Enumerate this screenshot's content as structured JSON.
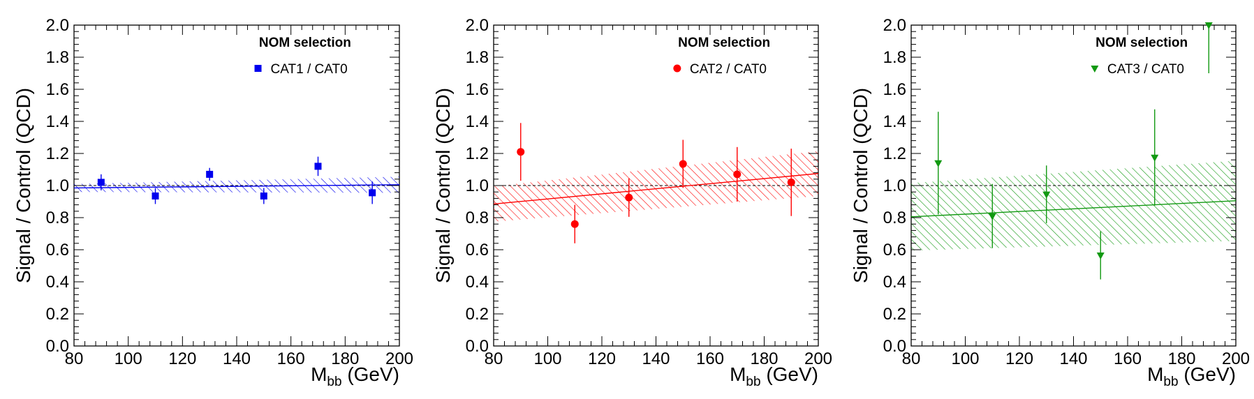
{
  "chart_data": [
    {
      "type": "scatter",
      "xlabel": "M",
      "xlabel_sub": "bb",
      "xlabel_unit": "(GeV)",
      "ylabel": "Signal / Control (QCD)",
      "xlim": [
        80,
        200
      ],
      "ylim": [
        0,
        2
      ],
      "x_ticks": [
        "80",
        "100",
        "120",
        "140",
        "160",
        "180",
        "200"
      ],
      "y_ticks": [
        "0.0",
        "0.2",
        "0.4",
        "0.6",
        "0.8",
        "1.0",
        "1.2",
        "1.4",
        "1.6",
        "1.8",
        "2.0"
      ],
      "reference_line": 1.0,
      "legend": {
        "title": "NOM selection",
        "placement": "top-right"
      },
      "series": [
        {
          "name": "CAT1 / CAT0",
          "marker": "square",
          "color": "#0000ee",
          "x": [
            90,
            110,
            130,
            150,
            170,
            190
          ],
          "y": [
            1.02,
            0.935,
            1.07,
            0.935,
            1.12,
            0.955
          ],
          "yerr": [
            0.05,
            0.05,
            0.04,
            0.05,
            0.06,
            0.07
          ]
        }
      ],
      "fit": {
        "x": [
          80,
          200
        ],
        "y": [
          0.985,
          1.005
        ],
        "band": [
          0.025,
          0.05
        ],
        "color": "#0000ee"
      }
    },
    {
      "type": "scatter",
      "xlabel": "M",
      "xlabel_sub": "bb",
      "xlabel_unit": "(GeV)",
      "ylabel": "Signal / Control (QCD)",
      "xlim": [
        80,
        200
      ],
      "ylim": [
        0,
        2
      ],
      "x_ticks": [
        "80",
        "100",
        "120",
        "140",
        "160",
        "180",
        "200"
      ],
      "y_ticks": [
        "0.0",
        "0.2",
        "0.4",
        "0.6",
        "0.8",
        "1.0",
        "1.2",
        "1.4",
        "1.6",
        "1.8",
        "2.0"
      ],
      "reference_line": 1.0,
      "legend": {
        "title": "NOM selection",
        "placement": "top-right"
      },
      "series": [
        {
          "name": "CAT2 / CAT0",
          "marker": "circle",
          "color": "#ff0000",
          "x": [
            90,
            110,
            130,
            150,
            170,
            190
          ],
          "y": [
            1.21,
            0.76,
            0.925,
            1.135,
            1.07,
            1.02
          ],
          "yerr": [
            0.18,
            0.12,
            0.12,
            0.15,
            0.17,
            0.21
          ]
        }
      ],
      "fit": {
        "x": [
          80,
          200
        ],
        "y": [
          0.885,
          1.075
        ],
        "band": [
          0.11,
          0.14
        ],
        "color": "#ff0000"
      }
    },
    {
      "type": "scatter",
      "xlabel": "M",
      "xlabel_sub": "bb",
      "xlabel_unit": "(GeV)",
      "ylabel": "Signal / Control (QCD)",
      "xlim": [
        80,
        200
      ],
      "ylim": [
        0,
        2
      ],
      "x_ticks": [
        "80",
        "100",
        "120",
        "140",
        "160",
        "180",
        "200"
      ],
      "y_ticks": [
        "0.0",
        "0.2",
        "0.4",
        "0.6",
        "0.8",
        "1.0",
        "1.2",
        "1.4",
        "1.6",
        "1.8",
        "2.0"
      ],
      "reference_line": 1.0,
      "legend": {
        "title": "NOM selection",
        "placement": "top-right"
      },
      "series": [
        {
          "name": "CAT3 / CAT0",
          "marker": "triangle-down",
          "color": "#119911",
          "x": [
            90,
            110,
            130,
            150,
            170,
            190
          ],
          "y": [
            1.14,
            0.81,
            0.945,
            0.565,
            1.175,
            2.0
          ],
          "yerr": [
            0.32,
            0.2,
            0.18,
            0.15,
            0.3,
            0.3
          ]
        }
      ],
      "fit": {
        "x": [
          80,
          200
        ],
        "y": [
          0.805,
          0.905
        ],
        "band": [
          0.21,
          0.25
        ],
        "color": "#119911"
      }
    }
  ]
}
